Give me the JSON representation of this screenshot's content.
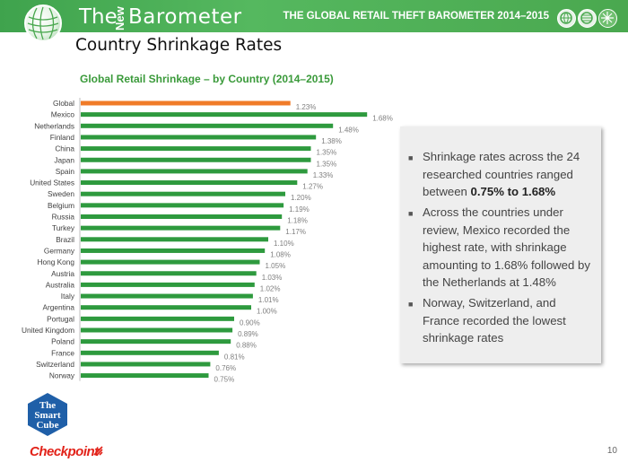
{
  "header": {
    "brand_the": "The",
    "brand_new": "New",
    "brand_barometer": "Barometer",
    "title": "THE GLOBAL RETAIL THEFT BAROMETER 2014–2015",
    "color": "#4aa84f"
  },
  "page_title": "Country Shrinkage Rates",
  "chart_data": {
    "type": "bar",
    "orientation": "horizontal",
    "title": "Global Retail Shrinkage – by Country (2014–2015)",
    "categories": [
      "Global",
      "Mexico",
      "Netherlands",
      "Finland",
      "China",
      "Japan",
      "Spain",
      "United States",
      "Sweden",
      "Belgium",
      "Russia",
      "Turkey",
      "Brazil",
      "Germany",
      "Hong Kong",
      "Austria",
      "Australia",
      "Italy",
      "Argentina",
      "Portugal",
      "United Kingdom",
      "Poland",
      "France",
      "Switzerland",
      "Norway"
    ],
    "values": [
      1.23,
      1.68,
      1.48,
      1.38,
      1.35,
      1.35,
      1.33,
      1.27,
      1.2,
      1.19,
      1.18,
      1.17,
      1.1,
      1.08,
      1.05,
      1.03,
      1.02,
      1.01,
      1.0,
      0.9,
      0.89,
      0.88,
      0.81,
      0.76,
      0.75
    ],
    "value_labels": [
      "1.23%",
      "1.68%",
      "1.48%",
      "1.38%",
      "1.35%",
      "1.35%",
      "1.33%",
      "1.27%",
      "1.20%",
      "1.19%",
      "1.18%",
      "1.17%",
      "1.10%",
      "1.08%",
      "1.05%",
      "1.03%",
      "1.02%",
      "1.01%",
      "1.00%",
      "0.90%",
      "0.89%",
      "0.88%",
      "0.81%",
      "0.76%",
      "0.75%"
    ],
    "xlim": [
      0,
      1.7
    ],
    "grid": false,
    "colors": {
      "highlight": "#f07b28",
      "bar": "#2e9a3e",
      "label": "#7f7f7f"
    }
  },
  "panel": {
    "bullets": [
      {
        "before": "Shrinkage rates across the 24 researched countries ranged between ",
        "bold": "0.75% to 1.68%",
        "after": ""
      },
      {
        "before": "Across the countries under review, Mexico recorded the highest rate, with shrinkage amounting to 1.68% followed by the Netherlands at 1.48%",
        "bold": "",
        "after": ""
      },
      {
        "before": "Norway, Switzerland, and France recorded the lowest shrinkage rates",
        "bold": "",
        "after": ""
      }
    ]
  },
  "footer": {
    "smartcube_lines": [
      "The",
      "Smart",
      "Cube"
    ],
    "checkpoint": "Checkpoint",
    "page_number": "10"
  }
}
